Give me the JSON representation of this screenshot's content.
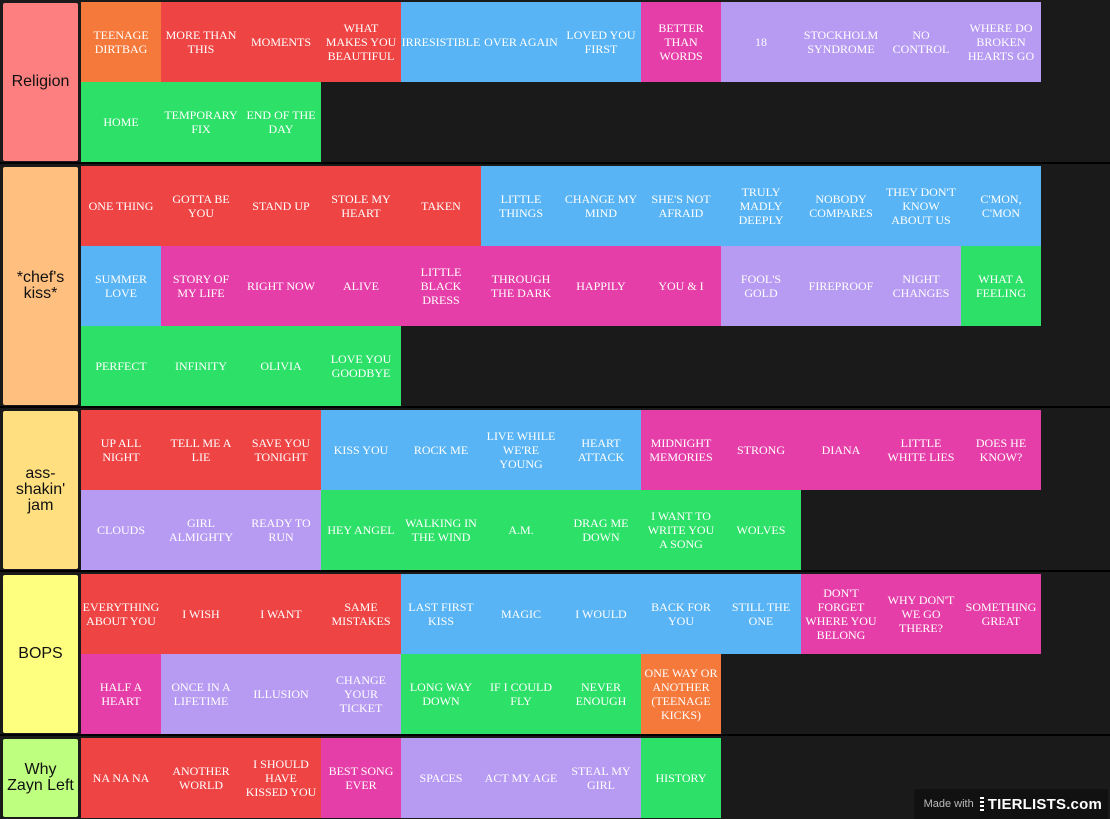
{
  "colors": {
    "orange": "#f5793a",
    "red": "#ef4444",
    "blue": "#58b4f4",
    "magenta": "#e63ea8",
    "purple": "#b79af2",
    "green": "#2de068"
  },
  "tiers": [
    {
      "label": "Religion",
      "color": "#fe7f7f",
      "rows": 2,
      "items": [
        {
          "title": "TEENAGE DIRTBAG",
          "color": "orange"
        },
        {
          "title": "MORE THAN THIS",
          "color": "red"
        },
        {
          "title": "MOMENTS",
          "color": "red"
        },
        {
          "title": "WHAT MAKES YOU BEAUTIFUL",
          "color": "red"
        },
        {
          "title": "IRRESISTIBLE",
          "color": "blue"
        },
        {
          "title": "OVER AGAIN",
          "color": "blue"
        },
        {
          "title": "LOVED YOU FIRST",
          "color": "blue"
        },
        {
          "title": "BETTER THAN WORDS",
          "color": "magenta"
        },
        {
          "title": "18",
          "color": "purple"
        },
        {
          "title": "STOCKHOLM SYNDROME",
          "color": "purple"
        },
        {
          "title": "NO CONTROL",
          "color": "purple"
        },
        {
          "title": "WHERE DO BROKEN HEARTS GO",
          "color": "purple"
        },
        {
          "title": "HOME",
          "color": "green"
        },
        {
          "title": "TEMPORARY FIX",
          "color": "green"
        },
        {
          "title": "END OF THE DAY",
          "color": "green"
        }
      ]
    },
    {
      "label": "*chef's kiss*",
      "color": "#ffbf7f",
      "rows": 3,
      "items": [
        {
          "title": "ONE THING",
          "color": "red"
        },
        {
          "title": "GOTTA BE YOU",
          "color": "red"
        },
        {
          "title": "STAND UP",
          "color": "red"
        },
        {
          "title": "STOLE MY HEART",
          "color": "red"
        },
        {
          "title": "TAKEN",
          "color": "red"
        },
        {
          "title": "LITTLE THINGS",
          "color": "blue"
        },
        {
          "title": "CHANGE MY MIND",
          "color": "blue"
        },
        {
          "title": "SHE'S NOT AFRAID",
          "color": "blue"
        },
        {
          "title": "TRULY MADLY DEEPLY",
          "color": "blue"
        },
        {
          "title": "NOBODY COMPARES",
          "color": "blue"
        },
        {
          "title": "THEY DON'T KNOW ABOUT US",
          "color": "blue"
        },
        {
          "title": "C'MON, C'MON",
          "color": "blue"
        },
        {
          "title": "SUMMER LOVE",
          "color": "blue"
        },
        {
          "title": "STORY OF MY LIFE",
          "color": "magenta"
        },
        {
          "title": "RIGHT NOW",
          "color": "magenta"
        },
        {
          "title": "ALIVE",
          "color": "magenta"
        },
        {
          "title": "LITTLE BLACK DRESS",
          "color": "magenta"
        },
        {
          "title": "THROUGH THE DARK",
          "color": "magenta"
        },
        {
          "title": "HAPPILY",
          "color": "magenta"
        },
        {
          "title": "YOU & I",
          "color": "magenta"
        },
        {
          "title": "FOOL'S GOLD",
          "color": "purple"
        },
        {
          "title": "FIREPROOF",
          "color": "purple"
        },
        {
          "title": "NIGHT CHANGES",
          "color": "purple"
        },
        {
          "title": "WHAT A FEELING",
          "color": "green"
        },
        {
          "title": "PERFECT",
          "color": "green"
        },
        {
          "title": "INFINITY",
          "color": "green"
        },
        {
          "title": "OLIVIA",
          "color": "green"
        },
        {
          "title": "LOVE YOU GOODBYE",
          "color": "green"
        }
      ]
    },
    {
      "label": "ass-shakin' jam",
      "color": "#ffdf7f",
      "rows": 2,
      "items": [
        {
          "title": "UP ALL NIGHT",
          "color": "red"
        },
        {
          "title": "TELL ME A LIE",
          "color": "red"
        },
        {
          "title": "SAVE YOU TONIGHT",
          "color": "red"
        },
        {
          "title": "KISS YOU",
          "color": "blue"
        },
        {
          "title": "ROCK ME",
          "color": "blue"
        },
        {
          "title": "LIVE WHILE WE'RE YOUNG",
          "color": "blue"
        },
        {
          "title": "HEART ATTACK",
          "color": "blue"
        },
        {
          "title": "MIDNIGHT MEMORIES",
          "color": "magenta"
        },
        {
          "title": "STRONG",
          "color": "magenta"
        },
        {
          "title": "DIANA",
          "color": "magenta"
        },
        {
          "title": "LITTLE WHITE LIES",
          "color": "magenta"
        },
        {
          "title": "DOES HE KNOW?",
          "color": "magenta"
        },
        {
          "title": "CLOUDS",
          "color": "purple"
        },
        {
          "title": "GIRL ALMIGHTY",
          "color": "purple"
        },
        {
          "title": "READY TO RUN",
          "color": "purple"
        },
        {
          "title": "HEY ANGEL",
          "color": "green"
        },
        {
          "title": "WALKING IN THE WIND",
          "color": "green"
        },
        {
          "title": "A.M.",
          "color": "green"
        },
        {
          "title": "DRAG ME DOWN",
          "color": "green"
        },
        {
          "title": "I WANT TO WRITE YOU A SONG",
          "color": "green"
        },
        {
          "title": "WOLVES",
          "color": "green"
        }
      ]
    },
    {
      "label": "BOPS",
      "color": "#ffff7f",
      "rows": 2,
      "items": [
        {
          "title": "EVERYTHING ABOUT YOU",
          "color": "red"
        },
        {
          "title": "I WISH",
          "color": "red"
        },
        {
          "title": "I WANT",
          "color": "red"
        },
        {
          "title": "SAME MISTAKES",
          "color": "red"
        },
        {
          "title": "LAST FIRST KISS",
          "color": "blue"
        },
        {
          "title": "MAGIC",
          "color": "blue"
        },
        {
          "title": "I WOULD",
          "color": "blue"
        },
        {
          "title": "BACK FOR YOU",
          "color": "blue"
        },
        {
          "title": "STILL THE ONE",
          "color": "blue"
        },
        {
          "title": "DON'T FORGET WHERE YOU BELONG",
          "color": "magenta"
        },
        {
          "title": "WHY DON'T WE GO THERE?",
          "color": "magenta"
        },
        {
          "title": "SOMETHING GREAT",
          "color": "magenta"
        },
        {
          "title": "HALF A HEART",
          "color": "magenta"
        },
        {
          "title": "ONCE IN A LIFETIME",
          "color": "purple"
        },
        {
          "title": "ILLUSION",
          "color": "purple"
        },
        {
          "title": "CHANGE YOUR TICKET",
          "color": "purple"
        },
        {
          "title": "LONG WAY DOWN",
          "color": "green"
        },
        {
          "title": "IF I COULD FLY",
          "color": "green"
        },
        {
          "title": "NEVER ENOUGH",
          "color": "green"
        },
        {
          "title": "ONE WAY OR ANOTHER (TEENAGE KICKS)",
          "color": "orange"
        }
      ]
    },
    {
      "label": "Why Zayn Left",
      "color": "#bfff7f",
      "rows": 1,
      "items": [
        {
          "title": "NA NA NA",
          "color": "red"
        },
        {
          "title": "ANOTHER WORLD",
          "color": "red"
        },
        {
          "title": "I SHOULD HAVE KISSED YOU",
          "color": "red"
        },
        {
          "title": "BEST SONG EVER",
          "color": "magenta"
        },
        {
          "title": "SPACES",
          "color": "purple"
        },
        {
          "title": "ACT MY AGE",
          "color": "purple"
        },
        {
          "title": "STEAL MY GIRL",
          "color": "purple"
        },
        {
          "title": "HISTORY",
          "color": "green"
        }
      ]
    }
  ],
  "watermark": {
    "made_with": "Made with",
    "brand": "TIERLISTS.com"
  }
}
